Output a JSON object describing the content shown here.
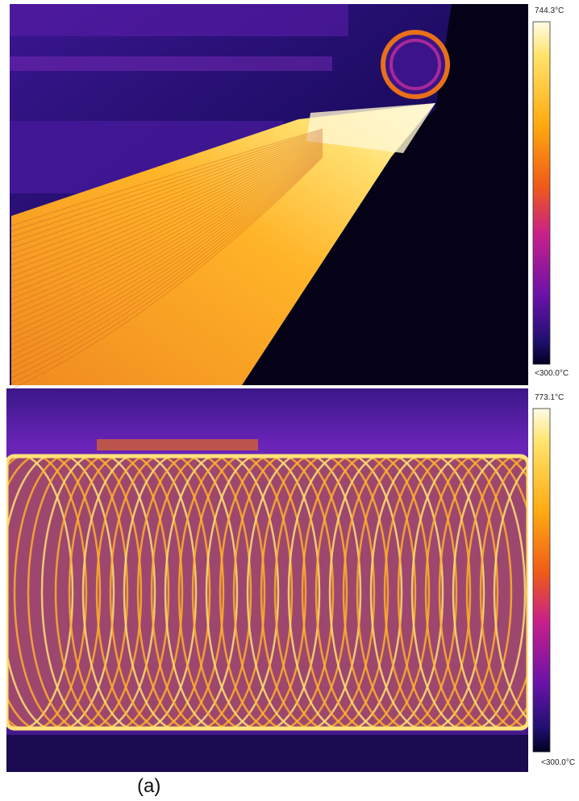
{
  "figure": {
    "panels": [
      {
        "max_label": "744.3°C",
        "min_label": "<300.0°C"
      },
      {
        "max_label": "773.1°C",
        "min_label": "<300.0°C"
      }
    ],
    "caption": "(a)"
  }
}
